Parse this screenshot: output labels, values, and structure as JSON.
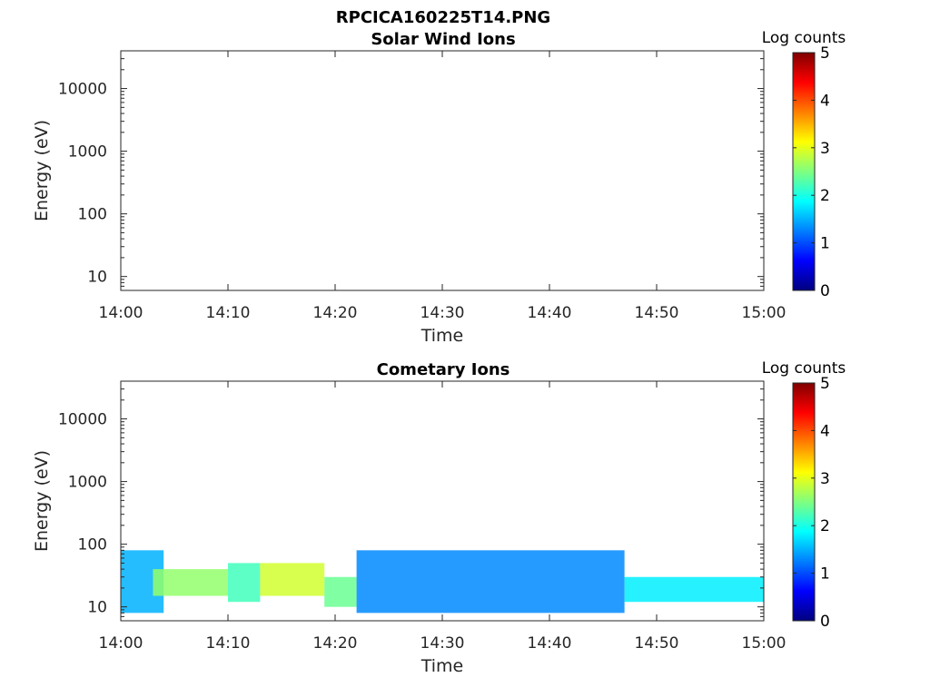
{
  "figure": {
    "title": "RPCICA160225T14.PNG"
  },
  "colormap": {
    "name": "jet",
    "stops": [
      "#00007f",
      "#0000ff",
      "#007fff",
      "#00ffff",
      "#7fff7f",
      "#ffff00",
      "#ff7f00",
      "#ff0000",
      "#7f0000"
    ]
  },
  "chart_data": [
    {
      "type": "heatmap",
      "title": "Solar Wind Ions",
      "xlabel": "Time",
      "ylabel": "Energy (eV)",
      "x_ticks": [
        "14:00",
        "14:10",
        "14:20",
        "14:30",
        "14:40",
        "14:50",
        "15:00"
      ],
      "xlim": [
        "14:00",
        "15:00"
      ],
      "y_scale": "log",
      "y_ticks": [
        10,
        100,
        1000,
        10000
      ],
      "ylim": [
        6,
        40000
      ],
      "colorbar": {
        "label": "Log counts",
        "range": [
          0,
          5
        ],
        "ticks": [
          0,
          1,
          2,
          3,
          4,
          5
        ]
      },
      "cells": []
    },
    {
      "type": "heatmap",
      "title": "Cometary Ions",
      "xlabel": "Time",
      "ylabel": "Energy (eV)",
      "x_ticks": [
        "14:00",
        "14:10",
        "14:20",
        "14:30",
        "14:40",
        "14:50",
        "15:00"
      ],
      "xlim": [
        "14:00",
        "15:00"
      ],
      "y_scale": "log",
      "y_ticks": [
        10,
        100,
        1000,
        10000
      ],
      "ylim": [
        6,
        40000
      ],
      "colorbar": {
        "label": "Log counts",
        "range": [
          0,
          5
        ],
        "ticks": [
          0,
          1,
          2,
          3,
          4,
          5
        ]
      },
      "cells": [
        {
          "time_range": [
            "14:00",
            "14:04"
          ],
          "energy_eV": [
            8,
            80
          ],
          "log_counts": 1.5
        },
        {
          "time_range": [
            "14:03",
            "14:10"
          ],
          "energy_eV": [
            15,
            40
          ],
          "log_counts": 2.6
        },
        {
          "time_range": [
            "14:10",
            "14:13"
          ],
          "energy_eV": [
            12,
            50
          ],
          "log_counts": 2.2
        },
        {
          "time_range": [
            "14:13",
            "14:19"
          ],
          "energy_eV": [
            15,
            50
          ],
          "log_counts": 2.9
        },
        {
          "time_range": [
            "14:19",
            "14:22"
          ],
          "energy_eV": [
            10,
            30
          ],
          "log_counts": 2.4
        },
        {
          "time_range": [
            "14:22",
            "14:47"
          ],
          "energy_eV": [
            8,
            80
          ],
          "log_counts": 1.3
        },
        {
          "time_range": [
            "14:47",
            "15:00"
          ],
          "energy_eV": [
            12,
            30
          ],
          "log_counts": 1.8
        }
      ]
    }
  ]
}
